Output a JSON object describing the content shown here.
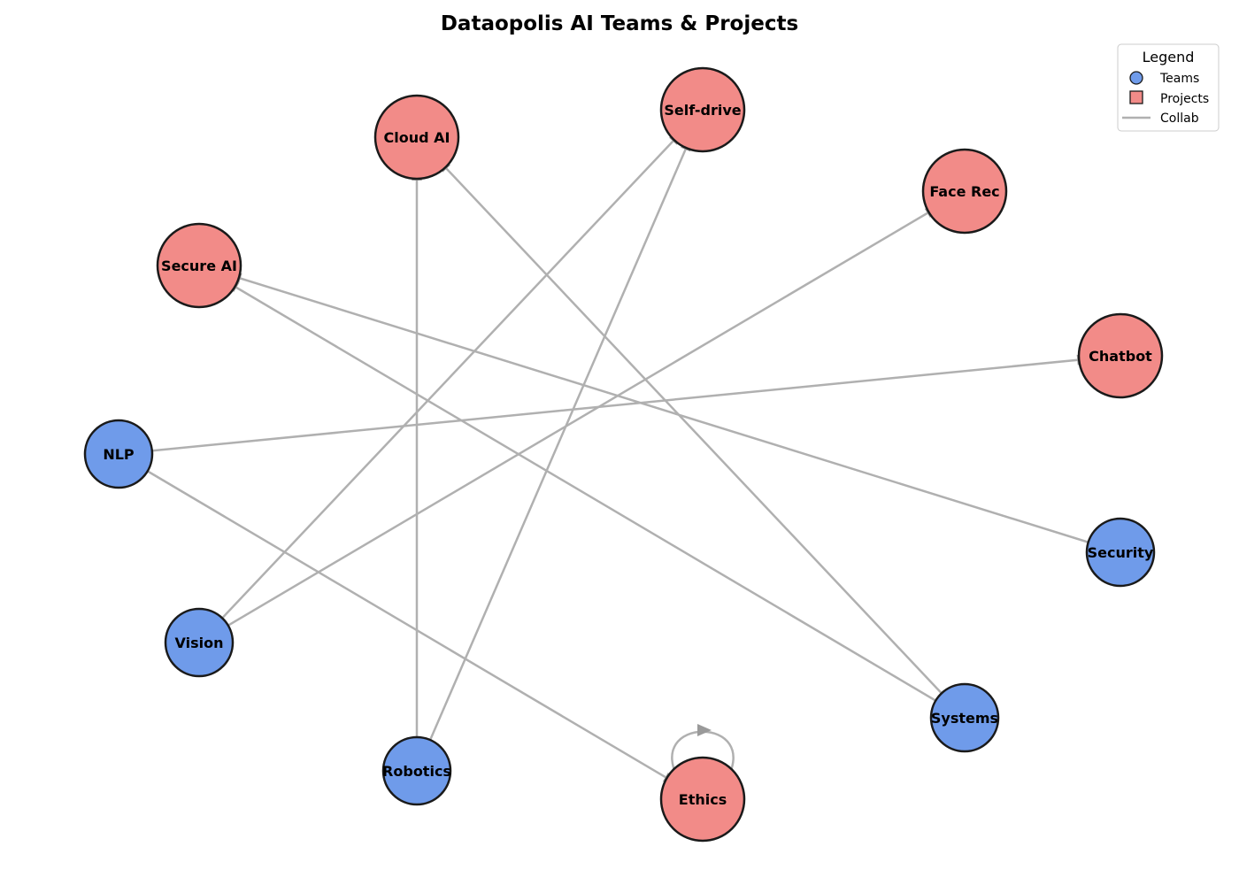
{
  "title": "Dataopolis AI Teams & Projects",
  "colors": {
    "team": "#6f9bea",
    "project": "#f28b88",
    "edge": "#b0b0b0",
    "outline": "#1a1a1a"
  },
  "legend": {
    "title": "Legend",
    "items": [
      {
        "label": "Teams",
        "shape": "circle",
        "color": "#6f9bea"
      },
      {
        "label": "Projects",
        "shape": "square",
        "color": "#f28b88"
      },
      {
        "label": "Collab",
        "shape": "line",
        "color": "#b0b0b0"
      }
    ]
  },
  "nodes": [
    {
      "id": "nlp",
      "label": "NLP",
      "kind": "team"
    },
    {
      "id": "vision",
      "label": "Vision",
      "kind": "team"
    },
    {
      "id": "robotics",
      "label": "Robotics",
      "kind": "team"
    },
    {
      "id": "systems",
      "label": "Systems",
      "kind": "team"
    },
    {
      "id": "security",
      "label": "Security",
      "kind": "team"
    },
    {
      "id": "chatbot",
      "label": "Chatbot",
      "kind": "project"
    },
    {
      "id": "facerec",
      "label": "Face Rec",
      "kind": "project"
    },
    {
      "id": "selfdrive",
      "label": "Self-drive",
      "kind": "project"
    },
    {
      "id": "cloudai",
      "label": "Cloud AI",
      "kind": "project"
    },
    {
      "id": "secureai",
      "label": "Secure AI",
      "kind": "project"
    },
    {
      "id": "ethics",
      "label": "Ethics",
      "kind": "project"
    }
  ],
  "edges": [
    {
      "from": "nlp",
      "to": "chatbot"
    },
    {
      "from": "nlp",
      "to": "ethics"
    },
    {
      "from": "vision",
      "to": "facerec"
    },
    {
      "from": "vision",
      "to": "selfdrive"
    },
    {
      "from": "robotics",
      "to": "selfdrive"
    },
    {
      "from": "robotics",
      "to": "cloudai"
    },
    {
      "from": "systems",
      "to": "cloudai"
    },
    {
      "from": "systems",
      "to": "secureai"
    },
    {
      "from": "security",
      "to": "secureai"
    },
    {
      "from": "ethics",
      "to": "ethics"
    }
  ]
}
